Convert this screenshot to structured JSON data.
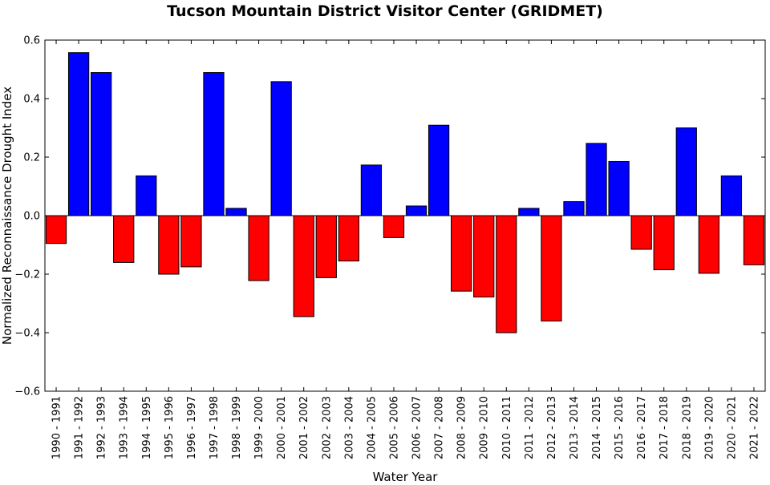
{
  "chart_data": {
    "type": "bar",
    "title": "Tucson Mountain District Visitor Center (GRIDMET)",
    "xlabel": "Water Year",
    "ylabel": "Normalized Reconnaissance Drought Index",
    "ylim": [
      -0.6,
      0.6
    ],
    "yticks": [
      "0.6",
      "0.4",
      "0.2",
      "0.0",
      "−0.2",
      "−0.4",
      "−0.6"
    ],
    "ytick_values": [
      0.6,
      0.4,
      0.2,
      0.0,
      -0.2,
      -0.4,
      -0.6
    ],
    "positive_color": "#0000ff",
    "negative_color": "#ff0000",
    "grid": false,
    "categories": [
      "1990 - 1991",
      "1991 - 1992",
      "1992 - 1993",
      "1993 - 1994",
      "1994 - 1995",
      "1995 - 1996",
      "1996 - 1997",
      "1997 - 1998",
      "1998 - 1999",
      "1999 - 2000",
      "2000 - 2001",
      "2001 - 2002",
      "2002 - 2003",
      "2003 - 2004",
      "2004 - 2005",
      "2005 - 2006",
      "2006 - 2007",
      "2007 - 2008",
      "2008 - 2009",
      "2009 - 2010",
      "2010 - 2011",
      "2011 - 2012",
      "2012 - 2013",
      "2013 - 2014",
      "2014 - 2015",
      "2015 - 2016",
      "2016 - 2017",
      "2017 - 2018",
      "2018 - 2019",
      "2019 - 2020",
      "2020 - 2021",
      "2021 - 2022"
    ],
    "values": [
      -0.095,
      0.557,
      0.489,
      -0.16,
      0.136,
      -0.2,
      -0.175,
      0.489,
      0.025,
      -0.222,
      0.458,
      -0.345,
      -0.212,
      -0.155,
      0.173,
      -0.075,
      0.033,
      0.309,
      -0.258,
      -0.278,
      -0.4,
      0.025,
      -0.36,
      0.048,
      0.247,
      0.185,
      -0.115,
      -0.185,
      0.3,
      -0.197,
      0.136,
      -0.168
    ]
  }
}
